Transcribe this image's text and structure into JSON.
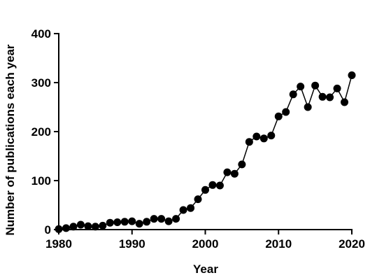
{
  "chart_data": {
    "type": "line",
    "x_label": "Year",
    "y_label": "Number of publications each year",
    "x": [
      1980,
      1981,
      1982,
      1983,
      1984,
      1985,
      1986,
      1987,
      1988,
      1989,
      1990,
      1991,
      1992,
      1993,
      1994,
      1995,
      1996,
      1997,
      1998,
      1999,
      2000,
      2001,
      2002,
      2003,
      2004,
      2005,
      2006,
      2007,
      2008,
      2009,
      2010,
      2011,
      2012,
      2013,
      2014,
      2015,
      2016,
      2017,
      2018,
      2019,
      2020
    ],
    "series": [
      {
        "color": "#000000",
        "values": [
          1,
          3,
          6,
          10,
          7,
          6,
          8,
          14,
          15,
          16,
          17,
          12,
          16,
          22,
          22,
          17,
          22,
          40,
          44,
          62,
          81,
          91,
          90,
          117,
          114,
          133,
          179,
          190,
          186,
          192,
          231,
          240,
          276,
          292,
          250,
          294,
          271,
          270,
          288,
          260,
          315
        ]
      }
    ],
    "xlim": [
      1980,
      2020
    ],
    "xticks": [
      1980,
      1990,
      2000,
      2010,
      2020
    ],
    "ylim": [
      0,
      400
    ],
    "yticks": [
      0,
      100,
      200,
      300,
      400
    ]
  }
}
